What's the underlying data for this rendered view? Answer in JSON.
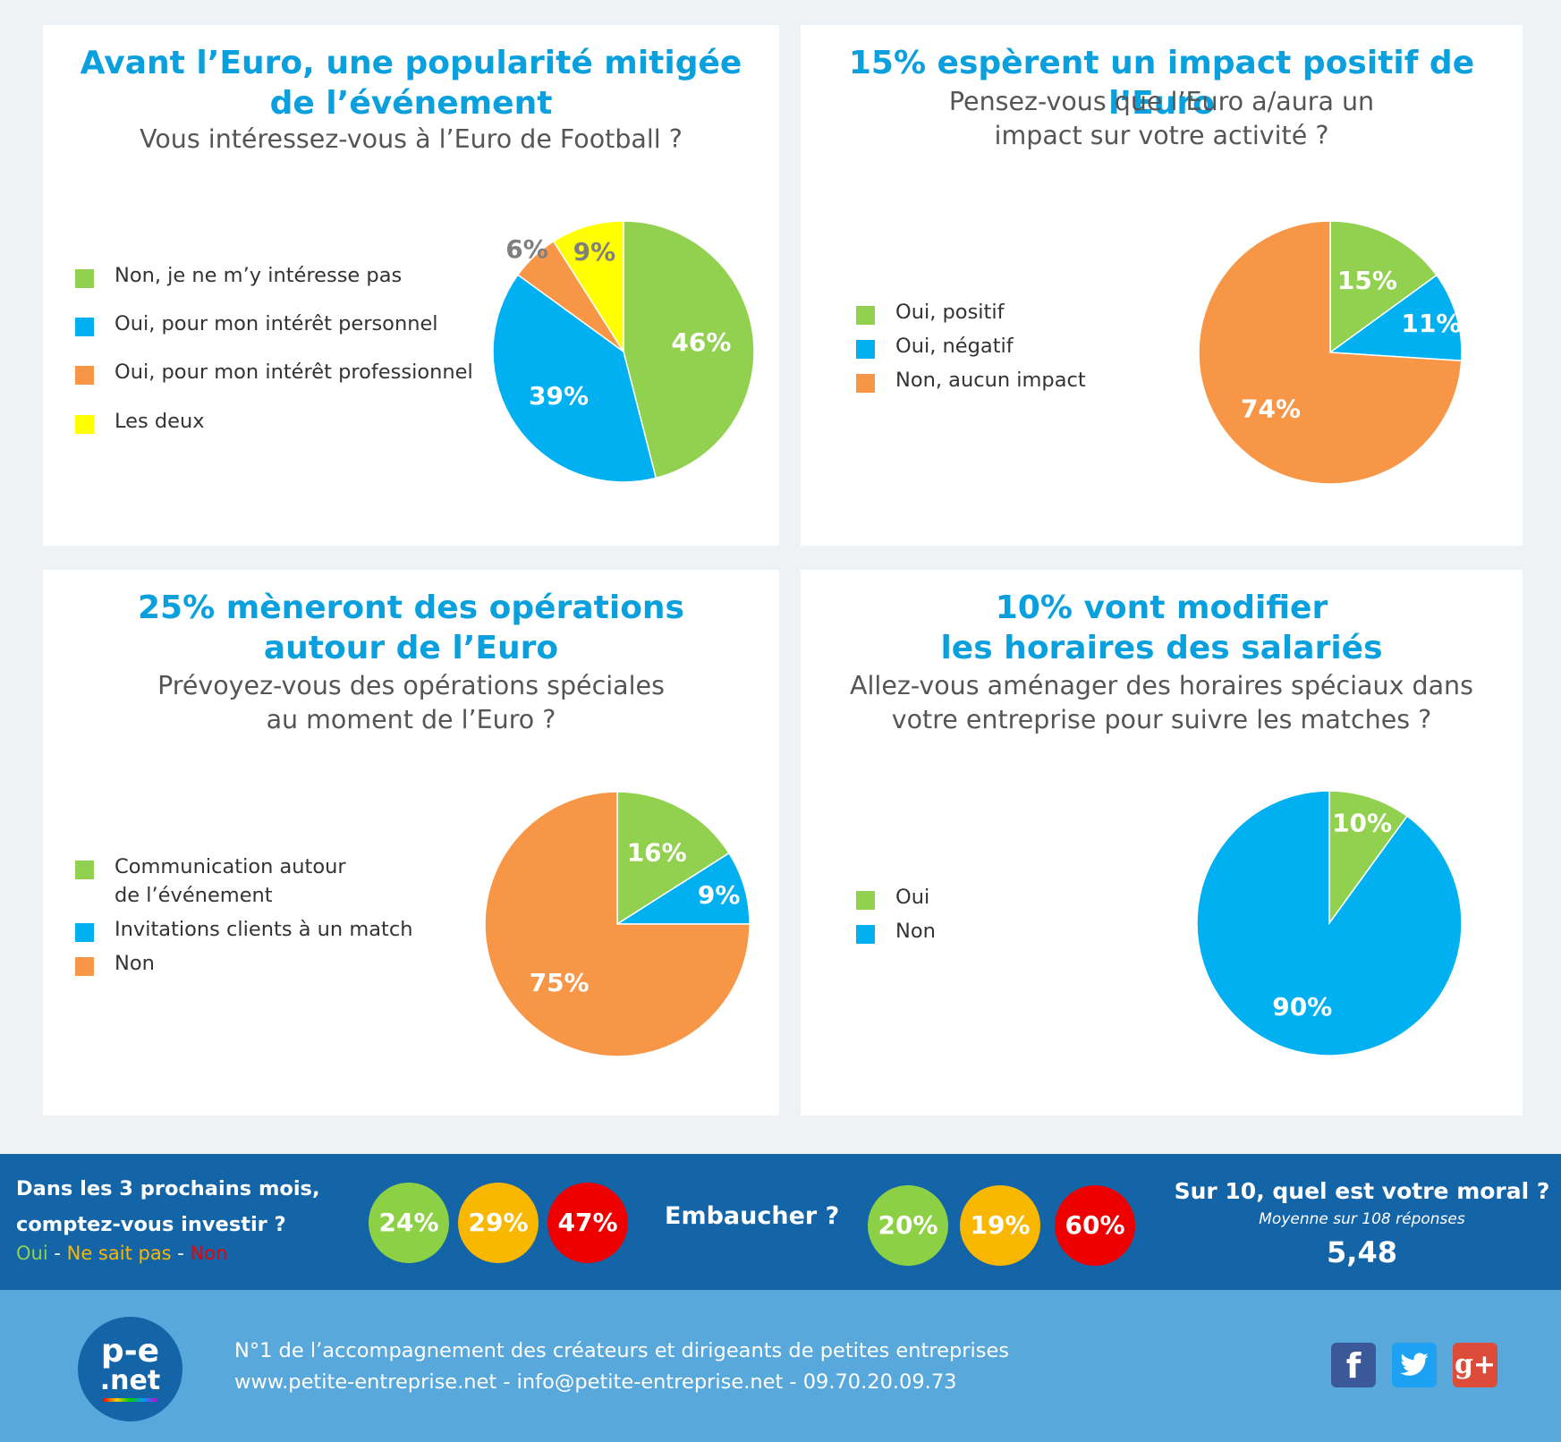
{
  "panels": [
    {
      "title": [
        "Avant l’Euro, une popularité mitigée",
        "de l’événement"
      ],
      "subtitle": [
        "Vous intéressez-vous à l’Euro de Football ?"
      ],
      "legend": [
        {
          "label": [
            "Non, je ne m’y intéresse pas"
          ],
          "color": "#92d050"
        },
        {
          "label": [
            "Oui, pour mon intérêt personnel"
          ],
          "color": "#00b0f0"
        },
        {
          "label": [
            "Oui, pour mon intérêt professionnel"
          ],
          "color": "#f79646"
        },
        {
          "label": [
            "Les deux"
          ],
          "color": "#ffff00"
        }
      ]
    },
    {
      "title": [
        "15% espèrent un impact positif de l’Euro"
      ],
      "subtitle": [
        "Pensez-vous que l’Euro a/aura un",
        "impact sur votre activité ?"
      ],
      "legend": [
        {
          "label": [
            "Oui, positif"
          ],
          "color": "#92d050"
        },
        {
          "label": [
            "Oui, négatif"
          ],
          "color": "#00b0f0"
        },
        {
          "label": [
            "Non, aucun impact"
          ],
          "color": "#f79646"
        }
      ]
    },
    {
      "title": [
        "25% mèneront des opérations",
        "autour de l’Euro"
      ],
      "subtitle": [
        "Prévoyez-vous des opérations spéciales",
        "au moment de l’Euro ?"
      ],
      "legend": [
        {
          "label": [
            "Communication autour",
            "de l’événement"
          ],
          "color": "#92d050"
        },
        {
          "label": [
            "Invitations clients à un match"
          ],
          "color": "#00b0f0"
        },
        {
          "label": [
            "Non"
          ],
          "color": "#f79646"
        }
      ]
    },
    {
      "title": [
        "10% vont modifier",
        "les horaires des salariés"
      ],
      "subtitle": [
        "Allez-vous aménager des horaires spéciaux dans",
        "votre entreprise pour suivre les matches ?"
      ],
      "legend": [
        {
          "label": [
            "Oui"
          ],
          "color": "#92d050"
        },
        {
          "label": [
            "Non"
          ],
          "color": "#00b0f0"
        }
      ]
    }
  ],
  "chart_data": [
    {
      "type": "pie",
      "title": "Avant l’Euro, une popularité mitigée de l’événement",
      "subtitle": "Vous intéressez-vous à l’Euro de Football ?",
      "categories": [
        "Non, je ne m’y intéresse pas",
        "Oui, pour mon intérêt personnel",
        "Oui, pour mon intérêt professionnel",
        "Les deux"
      ],
      "values": [
        46,
        39,
        6,
        9
      ],
      "labels": [
        "46%",
        "39%",
        "6%",
        "9%"
      ],
      "colors": [
        "#92d050",
        "#00b0f0",
        "#f79646",
        "#ffff00"
      ],
      "label_colors": [
        "#ffffff",
        "#ffffff",
        "#7f7f7f",
        "#7f7f7f"
      ],
      "legend": "left"
    },
    {
      "type": "pie",
      "title": "15% espèrent un impact positif de l’Euro",
      "subtitle": "Pensez-vous que l’Euro a/aura un impact sur votre activité ?",
      "categories": [
        "Oui, positif",
        "Oui, négatif",
        "Non, aucun impact"
      ],
      "values": [
        15,
        11,
        74
      ],
      "labels": [
        "15%",
        "11%",
        "74%"
      ],
      "colors": [
        "#92d050",
        "#00b0f0",
        "#f79646"
      ],
      "label_colors": [
        "#ffffff",
        "#ffffff",
        "#ffffff"
      ],
      "legend": "left"
    },
    {
      "type": "pie",
      "title": "25% mèneront des opérations autour de l’Euro",
      "subtitle": "Prévoyez-vous des opérations spéciales au moment de l’Euro ?",
      "categories": [
        "Communication autour de l’événement",
        "Invitations clients à un match",
        "Non"
      ],
      "values": [
        16,
        9,
        75
      ],
      "labels": [
        "16%",
        "9%",
        "75%"
      ],
      "colors": [
        "#92d050",
        "#00b0f0",
        "#f79646"
      ],
      "label_colors": [
        "#ffffff",
        "#ffffff",
        "#ffffff"
      ],
      "legend": "left"
    },
    {
      "type": "pie",
      "title": "10% vont modifier les horaires des salariés",
      "subtitle": "Allez-vous aménager des horaires spéciaux dans votre entreprise pour suivre les matches ?",
      "categories": [
        "Oui",
        "Non"
      ],
      "values": [
        10,
        90
      ],
      "labels": [
        "10%",
        "90%"
      ],
      "colors": [
        "#92d050",
        "#00b0f0"
      ],
      "label_colors": [
        "#ffffff",
        "#ffffff"
      ],
      "legend": "left"
    }
  ],
  "stats": {
    "invest_question_line1": "Dans les 3 prochains mois,",
    "invest_question_line2": "comptez-vous investir ?",
    "legend_oui": "Oui",
    "legend_sep": " - ",
    "legend_nsp": "Ne sait pas",
    "legend_non": "Non",
    "legend_colors": {
      "oui": "#92d050",
      "nsp": "#f9b700",
      "non": "#ee0000"
    },
    "invest_values": [
      "24%",
      "29%",
      "47%"
    ],
    "hire_question": "Embaucher ?",
    "hire_values": [
      "20%",
      "19%",
      "60%"
    ],
    "moral_question": "Sur 10, quel est votre moral ?",
    "moral_note": "Moyenne sur 108 réponses",
    "moral_value": "5,48"
  },
  "footer": {
    "logo_line1": "p-e",
    "logo_line2": ".net",
    "tagline": "N°1 de l’accompagnement des créateurs et dirigeants de petites entreprises",
    "contact": "www.petite-entreprise.net - info@petite-entreprise.net - 09.70.20.09.73",
    "social": [
      {
        "icon": "facebook-icon",
        "glyph": "f",
        "color": "#3b5998"
      },
      {
        "icon": "twitter-icon",
        "glyph": "t",
        "color": "#1da1f2"
      },
      {
        "icon": "google-plus-icon",
        "glyph": "g+",
        "color": "#dd4b39"
      }
    ]
  }
}
